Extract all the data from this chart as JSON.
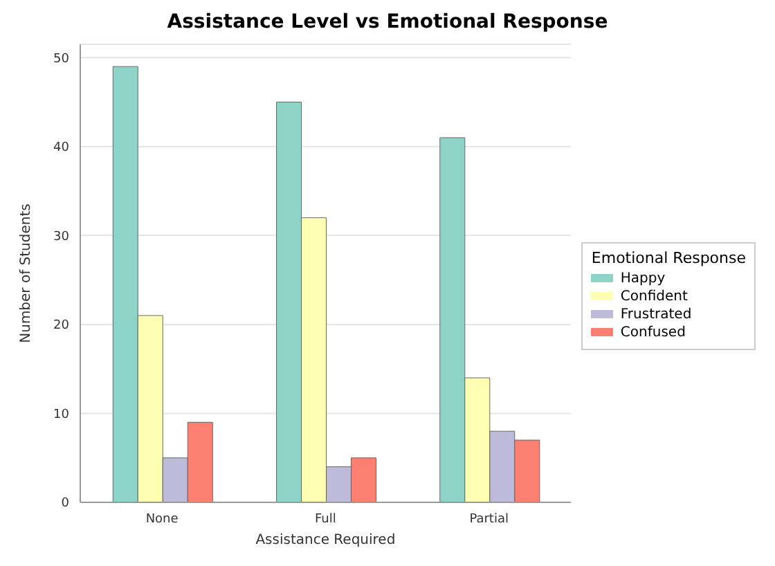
{
  "chart_data": {
    "type": "bar",
    "title": "Assistance Level vs Emotional Response",
    "xlabel": "Assistance Required",
    "ylabel": "Number of Students",
    "legend_title": "Emotional Response",
    "categories": [
      "None",
      "Full",
      "Partial"
    ],
    "series": [
      {
        "name": "Happy",
        "color": "#8dd3c7",
        "values": [
          49,
          45,
          41
        ]
      },
      {
        "name": "Confident",
        "color": "#ffffb3",
        "values": [
          21,
          32,
          14
        ]
      },
      {
        "name": "Frustrated",
        "color": "#bebada",
        "values": [
          5,
          4,
          8
        ]
      },
      {
        "name": "Confused",
        "color": "#fb8072",
        "values": [
          9,
          5,
          7
        ]
      }
    ],
    "ylim": [
      0,
      51.5
    ],
    "yticks": [
      0,
      10,
      20,
      30,
      40,
      50
    ],
    "grid": "y",
    "legend": "right"
  }
}
